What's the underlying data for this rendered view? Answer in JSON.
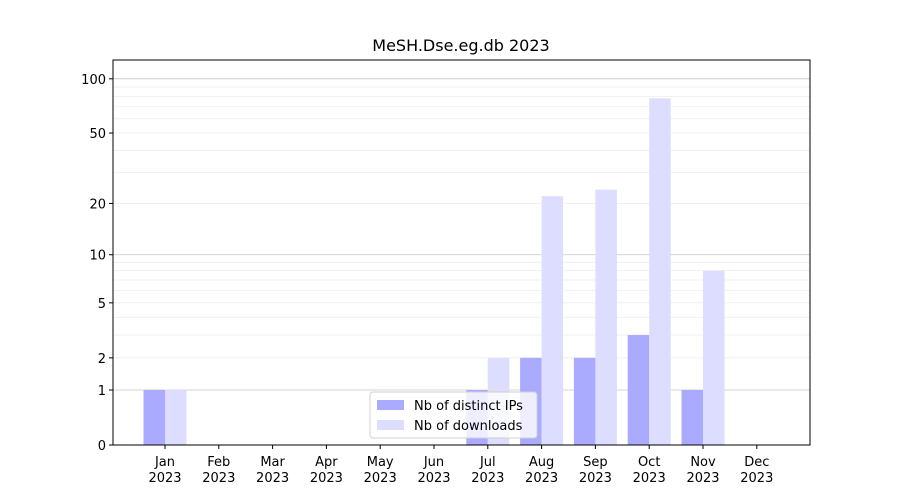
{
  "chart_data": {
    "type": "bar",
    "title": "MeSH.Dse.eg.db 2023",
    "categories": [
      "Jan\n2023",
      "Feb\n2023",
      "Mar\n2023",
      "Apr\n2023",
      "May\n2023",
      "Jun\n2023",
      "Jul\n2023",
      "Aug\n2023",
      "Sep\n2023",
      "Oct\n2023",
      "Nov\n2023",
      "Dec\n2023"
    ],
    "series": [
      {
        "name": "Nb of distinct IPs",
        "color": "#aaaaff",
        "values": [
          1,
          0,
          0,
          0,
          0,
          0,
          1,
          2,
          2,
          3,
          1,
          0
        ]
      },
      {
        "name": "Nb of downloads",
        "color": "#ddddff",
        "values": [
          1,
          0,
          0,
          0,
          0,
          0,
          2,
          22,
          24,
          78,
          8,
          0
        ]
      }
    ],
    "yscale": "log1p",
    "ylim": [
      0,
      127
    ],
    "yticks": [
      0,
      1,
      2,
      5,
      10,
      20,
      50,
      100
    ],
    "ymajorgrid": [
      1,
      10,
      100
    ],
    "yminorgrid": [
      2,
      3,
      4,
      5,
      6,
      7,
      8,
      9,
      20,
      30,
      40,
      50,
      60,
      70,
      80,
      90
    ],
    "legend": "lower center"
  }
}
